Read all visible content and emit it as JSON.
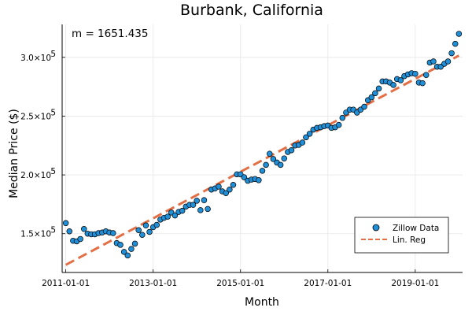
{
  "chart_data": {
    "type": "scatter",
    "title": "Burbank, California",
    "xlabel": "Month",
    "ylabel": "Median Price ($)",
    "annotation": "m = 1651.435",
    "x_ticks": [
      "2011-01-01",
      "2013-01-01",
      "2015-01-01",
      "2017-01-01",
      "2019-01-01"
    ],
    "y_ticks": [
      {
        "value": 150000,
        "mantissa": "1.5×10",
        "exp": "5"
      },
      {
        "value": 200000,
        "mantissa": "2.0×10",
        "exp": "5"
      },
      {
        "value": 250000,
        "mantissa": "2.5×10",
        "exp": "5"
      },
      {
        "value": 300000,
        "mantissa": "3.0×10",
        "exp": "5"
      }
    ],
    "x_start": "2010-12",
    "x_end": "2020-02",
    "ylim": [
      117000,
      328000
    ],
    "grid": true,
    "legend_position": "bottom-right",
    "series": [
      {
        "name": "Zillow Data",
        "kind": "scatter",
        "color": "#1f8fd8",
        "points": [
          [
            "2011-01",
            159000
          ],
          [
            "2011-02",
            152000
          ],
          [
            "2011-03",
            144000
          ],
          [
            "2011-04",
            143500
          ],
          [
            "2011-05",
            145500
          ],
          [
            "2011-06",
            154000
          ],
          [
            "2011-07",
            150000
          ],
          [
            "2011-08",
            149500
          ],
          [
            "2011-09",
            149500
          ],
          [
            "2011-10",
            150500
          ],
          [
            "2011-11",
            151000
          ],
          [
            "2011-12",
            152000
          ],
          [
            "2012-01",
            151000
          ],
          [
            "2012-02",
            150500
          ],
          [
            "2012-03",
            142000
          ],
          [
            "2012-04",
            140500
          ],
          [
            "2012-05",
            134500
          ],
          [
            "2012-06",
            131500
          ],
          [
            "2012-07",
            137000
          ],
          [
            "2012-08",
            141500
          ],
          [
            "2012-09",
            153000
          ],
          [
            "2012-10",
            149000
          ],
          [
            "2012-11",
            157000
          ],
          [
            "2012-12",
            151500
          ],
          [
            "2013-01",
            155500
          ],
          [
            "2013-02",
            157500
          ],
          [
            "2013-03",
            162000
          ],
          [
            "2013-04",
            163500
          ],
          [
            "2013-05",
            164500
          ],
          [
            "2013-06",
            168000
          ],
          [
            "2013-07",
            165500
          ],
          [
            "2013-08",
            168500
          ],
          [
            "2013-09",
            169500
          ],
          [
            "2013-10",
            173000
          ],
          [
            "2013-11",
            174500
          ],
          [
            "2013-12",
            174500
          ],
          [
            "2014-01",
            178000
          ],
          [
            "2014-02",
            170000
          ],
          [
            "2014-03",
            178500
          ],
          [
            "2014-04",
            171000
          ],
          [
            "2014-05",
            187500
          ],
          [
            "2014-06",
            188500
          ],
          [
            "2014-07",
            190000
          ],
          [
            "2014-08",
            186000
          ],
          [
            "2014-09",
            184500
          ],
          [
            "2014-10",
            187500
          ],
          [
            "2014-11",
            191500
          ],
          [
            "2014-12",
            200500
          ],
          [
            "2015-01",
            200500
          ],
          [
            "2015-02",
            198000
          ],
          [
            "2015-03",
            195000
          ],
          [
            "2015-04",
            196000
          ],
          [
            "2015-05",
            196500
          ],
          [
            "2015-06",
            195500
          ],
          [
            "2015-07",
            203500
          ],
          [
            "2015-08",
            208500
          ],
          [
            "2015-09",
            218000
          ],
          [
            "2015-10",
            213500
          ],
          [
            "2015-11",
            210500
          ],
          [
            "2015-12",
            208500
          ],
          [
            "2016-01",
            214000
          ],
          [
            "2016-02",
            219500
          ],
          [
            "2016-03",
            221000
          ],
          [
            "2016-04",
            225000
          ],
          [
            "2016-05",
            225500
          ],
          [
            "2016-06",
            227500
          ],
          [
            "2016-07",
            232000
          ],
          [
            "2016-08",
            235000
          ],
          [
            "2016-09",
            238500
          ],
          [
            "2016-10",
            240000
          ],
          [
            "2016-11",
            240500
          ],
          [
            "2016-12",
            241500
          ],
          [
            "2017-01",
            242000
          ],
          [
            "2017-02",
            240000
          ],
          [
            "2017-03",
            240500
          ],
          [
            "2017-04",
            242500
          ],
          [
            "2017-05",
            248500
          ],
          [
            "2017-06",
            253000
          ],
          [
            "2017-07",
            255500
          ],
          [
            "2017-08",
            255500
          ],
          [
            "2017-09",
            253000
          ],
          [
            "2017-10",
            255500
          ],
          [
            "2017-11",
            258000
          ],
          [
            "2017-12",
            263500
          ],
          [
            "2018-01",
            266000
          ],
          [
            "2018-02",
            269500
          ],
          [
            "2018-03",
            273500
          ],
          [
            "2018-04",
            279500
          ],
          [
            "2018-05",
            279500
          ],
          [
            "2018-06",
            278500
          ],
          [
            "2018-07",
            276500
          ],
          [
            "2018-08",
            281500
          ],
          [
            "2018-09",
            280500
          ],
          [
            "2018-10",
            284000
          ],
          [
            "2018-11",
            285500
          ],
          [
            "2018-12",
            286500
          ],
          [
            "2019-01",
            286000
          ],
          [
            "2019-02",
            278500
          ],
          [
            "2019-03",
            278000
          ],
          [
            "2019-04",
            285000
          ],
          [
            "2019-05",
            295500
          ],
          [
            "2019-06",
            296500
          ],
          [
            "2019-07",
            292000
          ],
          [
            "2019-08",
            292000
          ],
          [
            "2019-09",
            294500
          ],
          [
            "2019-10",
            296500
          ],
          [
            "2019-11",
            303500
          ],
          [
            "2019-12",
            311500
          ],
          [
            "2020-01",
            320000
          ]
        ]
      },
      {
        "name": "Lin. Reg",
        "kind": "line",
        "dash": true,
        "color": "#e26f46",
        "points": [
          [
            "2011-01",
            123500
          ],
          [
            "2020-01",
            301500
          ]
        ]
      }
    ]
  }
}
